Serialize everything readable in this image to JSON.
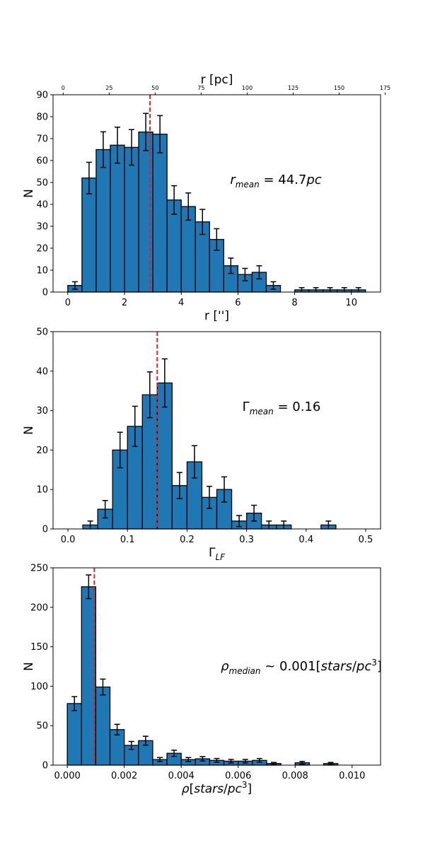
{
  "chart_data": [
    {
      "type": "bar",
      "xlabel": "r ['']",
      "ylabel": "N",
      "top_axis_label": "r [pc]",
      "top_ticks": [
        0,
        25,
        50,
        75,
        100,
        125,
        150,
        175
      ],
      "top_xlim": [
        -5.5,
        172.5
      ],
      "xlim": [
        -0.52,
        11.03
      ],
      "ylim": [
        0,
        90
      ],
      "xticks": [
        0,
        2,
        4,
        6,
        8,
        10
      ],
      "yticks": [
        0,
        10,
        20,
        30,
        40,
        50,
        60,
        70,
        80,
        90
      ],
      "bin_width": 0.5,
      "bin_starts": [
        0,
        0.5,
        1.0,
        1.5,
        2.0,
        2.5,
        3.0,
        3.5,
        4.0,
        4.5,
        5.0,
        5.5,
        6.0,
        6.5,
        7.0,
        7.5,
        8.0,
        8.5,
        9.0,
        9.5,
        10.0
      ],
      "values": [
        3,
        52,
        65,
        67,
        66,
        73,
        72,
        42,
        39,
        32,
        24,
        12,
        8,
        9,
        3,
        0,
        1,
        1,
        1,
        1,
        1
      ],
      "errors": [
        1.7,
        7.2,
        8.1,
        8.2,
        8.1,
        8.5,
        8.5,
        6.5,
        6.2,
        5.7,
        4.9,
        3.5,
        2.8,
        3.0,
        1.7,
        0,
        1,
        1,
        1,
        1,
        1
      ],
      "reference_line": 2.9,
      "annotation": "r_mean = 44.7pc",
      "color": "#1f77b4",
      "reference_color": "#d62728"
    },
    {
      "type": "bar",
      "xlabel": "Γ_LF",
      "ylabel": "N",
      "xlim": [
        -0.025,
        0.525
      ],
      "ylim": [
        0,
        50
      ],
      "xticks": [
        0.0,
        0.1,
        0.2,
        0.3,
        0.4,
        0.5
      ],
      "yticks": [
        0,
        10,
        20,
        30,
        40,
        50
      ],
      "bin_width": 0.025,
      "bin_starts": [
        0.0,
        0.025,
        0.05,
        0.075,
        0.1,
        0.125,
        0.15,
        0.175,
        0.2,
        0.225,
        0.25,
        0.275,
        0.3,
        0.325,
        0.35,
        0.375,
        0.4,
        0.425,
        0.45,
        0.475
      ],
      "values": [
        0,
        1,
        5,
        20,
        26,
        34,
        37,
        11,
        17,
        8,
        10,
        2,
        4,
        1,
        1,
        0,
        0,
        1,
        0,
        0
      ],
      "errors": [
        0,
        1,
        2.2,
        4.5,
        5.1,
        5.8,
        6.1,
        3.3,
        4.1,
        2.8,
        3.2,
        1.4,
        2.0,
        1,
        1,
        0,
        0,
        1,
        0,
        0
      ],
      "reference_line": 0.15,
      "annotation": "Γ_mean = 0.16",
      "color": "#1f77b4",
      "reference_color": "#d62728"
    },
    {
      "type": "bar",
      "xlabel": "ρ[stars/pc³]",
      "ylabel": "N",
      "xlim": [
        -0.0005,
        0.011
      ],
      "ylim": [
        0,
        250
      ],
      "xticks": [
        0.0,
        0.002,
        0.004,
        0.006,
        0.008,
        0.01
      ],
      "xtick_labels": [
        "0.000",
        "0.002",
        "0.004",
        "0.006",
        "0.008",
        "0.010"
      ],
      "yticks": [
        0,
        50,
        100,
        150,
        200,
        250
      ],
      "bin_width": 0.0005,
      "bin_starts": [
        0.0,
        0.0005,
        0.001,
        0.0015,
        0.002,
        0.0025,
        0.003,
        0.0035,
        0.004,
        0.0045,
        0.005,
        0.0055,
        0.006,
        0.0065,
        0.007,
        0.0075,
        0.008,
        0.0085,
        0.009,
        0.0095,
        0.01
      ],
      "values": [
        78,
        226,
        99,
        45,
        25,
        31,
        7,
        15,
        7,
        8,
        6,
        5,
        5,
        6,
        2,
        0,
        3,
        0,
        2,
        0,
        0
      ],
      "errors": [
        8.8,
        15.0,
        10.0,
        6.7,
        5.0,
        5.6,
        2.6,
        3.9,
        2.6,
        2.8,
        2.4,
        2.2,
        2.2,
        2.4,
        1.4,
        0,
        1.7,
        0,
        1.4,
        0,
        0
      ],
      "reference_line": 0.00095,
      "annotation": "ρ_median ~ 0.001[stars/pc³]",
      "color": "#1f77b4",
      "reference_color": "#d62728"
    }
  ]
}
